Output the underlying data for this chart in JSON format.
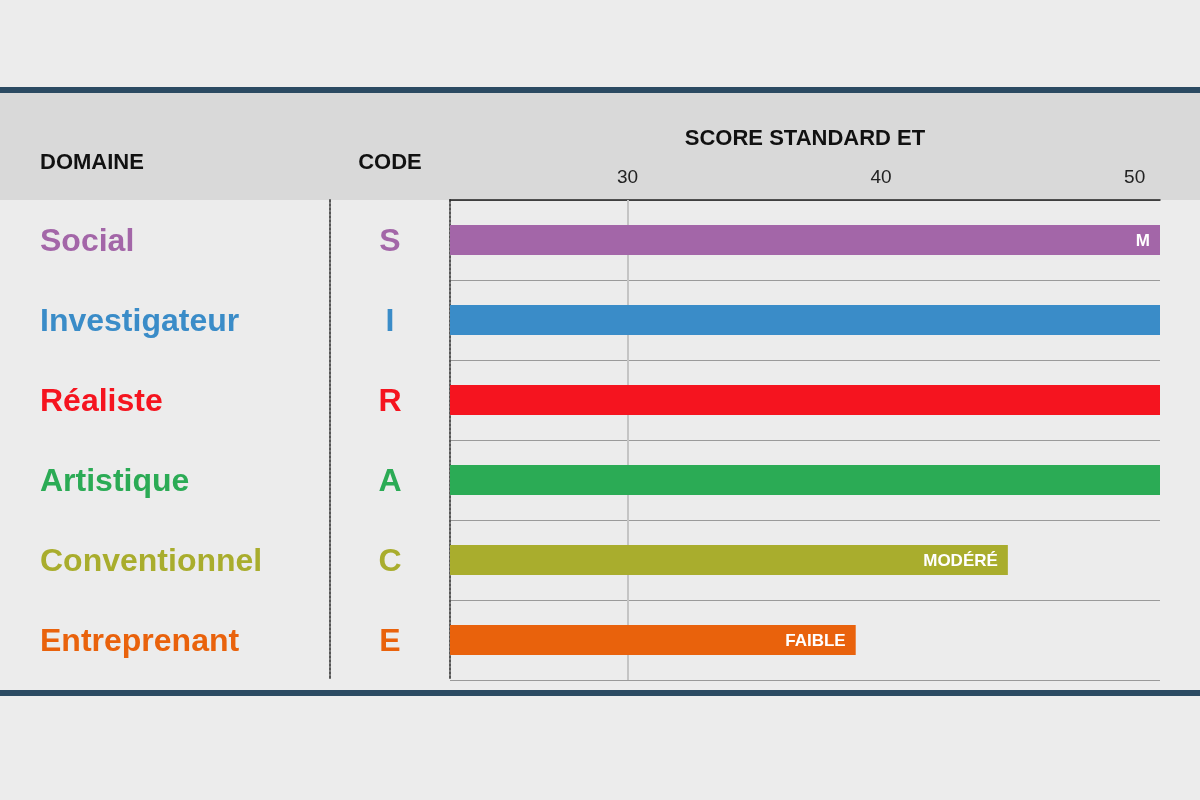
{
  "chart_data": {
    "type": "bar",
    "orientation": "horizontal",
    "xlabel": "SCORE STANDARD ET",
    "ylabel": "DOMAINE",
    "y2label": "CODE",
    "categories": [
      "Social",
      "Investigateur",
      "Réaliste",
      "Artistique",
      "Conventionnel",
      "Entreprenant"
    ],
    "y2_categories": [
      "S",
      "I",
      "R",
      "A",
      "C",
      "E"
    ],
    "values": [
      51,
      51,
      51,
      51,
      45,
      39
    ],
    "colors": [
      "#a366a8",
      "#3a8cc8",
      "#f5141f",
      "#2bab55",
      "#a9ad2d",
      "#e9620c"
    ],
    "value_labels": [
      "M",
      null,
      null,
      null,
      "MODÉRÉ",
      "FAIBLE"
    ],
    "xlim": [
      23,
      51
    ],
    "xticks": [
      30,
      40,
      50
    ],
    "grid": "y",
    "ref_lines": [
      {
        "axis": "x",
        "value": 30,
        "color": "#c4c4c4"
      }
    ]
  }
}
